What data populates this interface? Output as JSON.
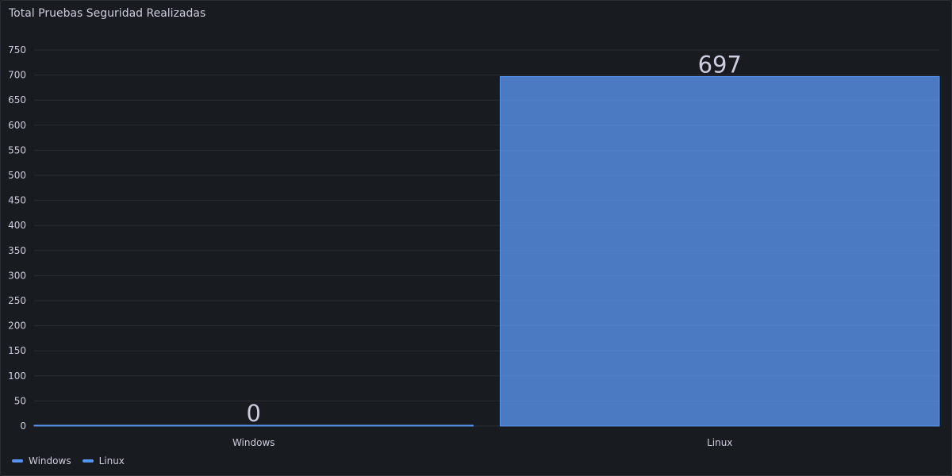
{
  "panel": {
    "title": "Total Pruebas Seguridad Realizadas"
  },
  "chart_data": {
    "type": "bar",
    "title": "Total Pruebas Seguridad Realizadas",
    "categories": [
      "Windows",
      "Linux"
    ],
    "series": [
      {
        "name": "Windows",
        "values": [
          0,
          null
        ]
      },
      {
        "name": "Linux",
        "values": [
          null,
          697
        ]
      }
    ],
    "values": [
      0,
      697
    ],
    "data_labels": [
      "0",
      "697"
    ],
    "ylim": [
      0,
      750
    ],
    "yticks": [
      0,
      50,
      100,
      150,
      200,
      250,
      300,
      350,
      400,
      450,
      500,
      550,
      600,
      650,
      700,
      750
    ],
    "grid": true,
    "legend_placement": "bottom-left",
    "colors": {
      "bar_fill": "#5790e6",
      "bar_stroke": "#5794f2",
      "grid": "#2a2d33",
      "axis_text": "#ccccdc",
      "value_text": "#ccccdc"
    }
  },
  "legend": {
    "items": [
      {
        "label": "Windows",
        "color": "#5794f2"
      },
      {
        "label": "Linux",
        "color": "#5794f2"
      }
    ]
  }
}
